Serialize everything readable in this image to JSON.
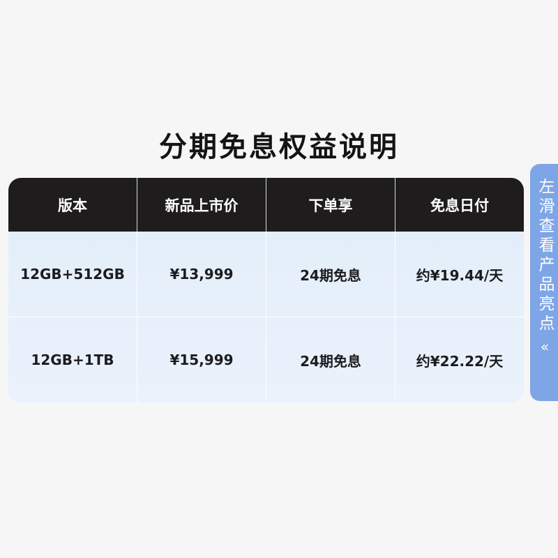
{
  "title": "分期免息权益说明",
  "table": {
    "headers": [
      "版本",
      "新品上市价",
      "下单享",
      "免息日付"
    ],
    "rows": [
      [
        "12GB+512GB",
        "¥13,999",
        "24期免息",
        "约¥19.44/天"
      ],
      [
        "12GB+1TB",
        "¥15,999",
        "24期免息",
        "约¥22.22/天"
      ]
    ]
  },
  "side_tab": {
    "label": "左滑查看产品亮点",
    "icon": "double-chevron-left-icon",
    "glyph": "«"
  },
  "colors": {
    "header_bg": "#1e1c1d",
    "row_bg": "#e6effa",
    "tab_bg": "#7ea5e6"
  }
}
